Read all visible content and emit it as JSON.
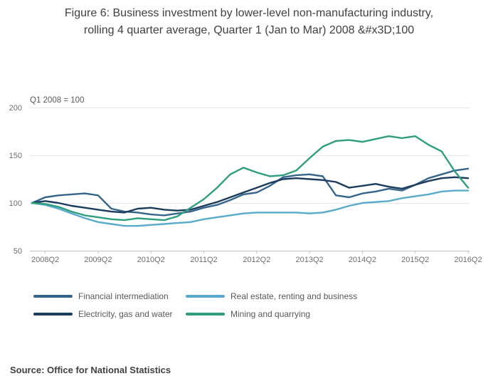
{
  "title": {
    "line1": "Figure 6: Business investment by lower-level non-manufacturing industry,",
    "line2": "rolling 4 quarter average, Quarter 1 (Jan to Mar) 2008 &#x3D;100"
  },
  "source": "Source: Office for National Statistics",
  "chart_data": {
    "type": "line",
    "annotation": "Q1 2008 = 100",
    "ylim": [
      50,
      200
    ],
    "y_ticks": [
      50,
      100,
      150,
      200
    ],
    "grid_y": [
      100,
      150,
      200
    ],
    "x_quarters": [
      "2008Q1",
      "2008Q2",
      "2008Q3",
      "2008Q4",
      "2009Q1",
      "2009Q2",
      "2009Q3",
      "2009Q4",
      "2010Q1",
      "2010Q2",
      "2010Q3",
      "2010Q4",
      "2011Q1",
      "2011Q2",
      "2011Q3",
      "2011Q4",
      "2012Q1",
      "2012Q2",
      "2012Q3",
      "2012Q4",
      "2013Q1",
      "2013Q2",
      "2013Q3",
      "2013Q4",
      "2014Q1",
      "2014Q2",
      "2014Q3",
      "2014Q4",
      "2015Q1",
      "2015Q2",
      "2015Q3",
      "2015Q4",
      "2016Q1",
      "2016Q2"
    ],
    "x_tick_labels": [
      "2008Q2",
      "2009Q2",
      "2010Q2",
      "2011Q2",
      "2012Q2",
      "2013Q2",
      "2014Q2",
      "2015Q2",
      "2016Q2"
    ],
    "x_tick_indices": [
      1,
      5,
      9,
      13,
      17,
      21,
      25,
      29,
      33
    ],
    "legend_position": "bottom",
    "grid": "horizontal-only",
    "series": [
      {
        "name": "Financial intermediation",
        "color": "#35658b",
        "values": [
          100,
          106,
          108,
          109,
          110,
          108,
          94,
          91,
          90,
          88,
          87,
          89,
          91,
          95,
          98,
          103,
          109,
          111,
          118,
          127,
          129,
          130,
          128,
          108,
          106,
          110,
          112,
          115,
          113,
          119,
          126,
          130,
          134,
          136
        ]
      },
      {
        "name": "Real estate, renting and business",
        "color": "#58abcb",
        "values": [
          100,
          98,
          94,
          89,
          84,
          80,
          78,
          76,
          76,
          77,
          78,
          79,
          80,
          83,
          85,
          87,
          89,
          90,
          90,
          90,
          90,
          89,
          90,
          93,
          97,
          100,
          101,
          102,
          105,
          107,
          109,
          112,
          113,
          113
        ]
      },
      {
        "name": "Electricity, gas and water",
        "color": "#1b3c5c",
        "values": [
          100,
          102,
          100,
          97,
          95,
          93,
          91,
          90,
          94,
          95,
          93,
          92,
          93,
          97,
          101,
          106,
          111,
          116,
          121,
          125,
          126,
          125,
          124,
          122,
          116,
          118,
          120,
          117,
          115,
          119,
          123,
          126,
          127,
          126
        ]
      },
      {
        "name": "Mining and quarrying",
        "color": "#2f9e7d",
        "values": [
          100,
          99,
          96,
          91,
          87,
          85,
          83,
          82,
          84,
          83,
          82,
          86,
          95,
          104,
          116,
          130,
          137,
          132,
          128,
          129,
          134,
          147,
          159,
          165,
          166,
          164,
          167,
          170,
          168,
          170,
          161,
          154,
          133,
          116
        ]
      }
    ]
  }
}
